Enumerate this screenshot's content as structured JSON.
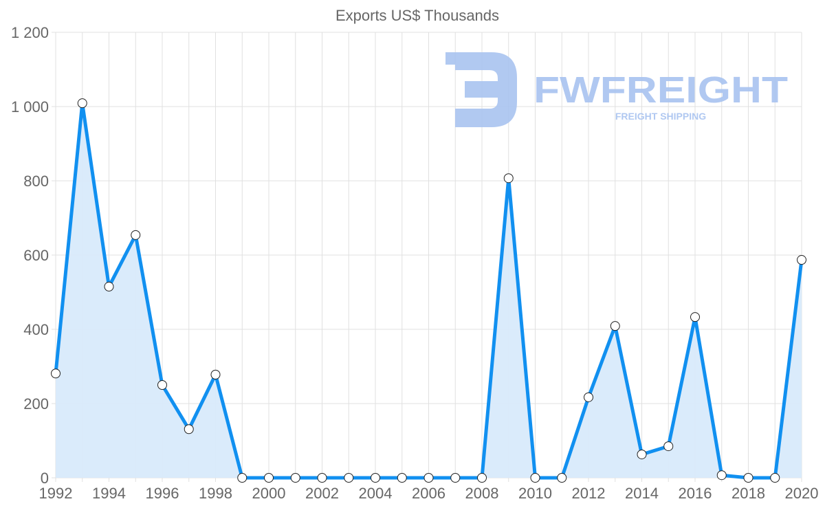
{
  "chart_data": {
    "type": "area",
    "title": "Exports US$ Thousands",
    "xlabel": "",
    "ylabel": "",
    "x": [
      1992,
      1993,
      1994,
      1995,
      1996,
      1997,
      1998,
      1999,
      2000,
      2001,
      2002,
      2003,
      2004,
      2005,
      2006,
      2007,
      2008,
      2009,
      2010,
      2011,
      2012,
      2013,
      2014,
      2015,
      2016,
      2017,
      2018,
      2019,
      2020
    ],
    "series": [
      {
        "name": "Exports",
        "values": [
          281,
          1009,
          515,
          654,
          250,
          131,
          278,
          0,
          0,
          0,
          0,
          0,
          0,
          0,
          0,
          0,
          0,
          807,
          0,
          0,
          217,
          409,
          63,
          85,
          433,
          7,
          0,
          0,
          587
        ]
      }
    ],
    "ylim": [
      0,
      1200
    ],
    "xlim": [
      1992,
      2020
    ],
    "y_ticks": [
      "0",
      "200",
      "400",
      "600",
      "800",
      "1 000",
      "1 200"
    ],
    "x_ticks": [
      "1992",
      "1994",
      "1996",
      "1998",
      "2000",
      "2002",
      "2004",
      "2006",
      "2008",
      "2010",
      "2012",
      "2014",
      "2016",
      "2018",
      "2020"
    ],
    "grid": true,
    "legend": "none",
    "colors": {
      "line": "#1190f0",
      "fill": "#d8eafb",
      "grid": "#e0e0e0",
      "text": "#666666"
    }
  },
  "watermark": {
    "brand": "FWFREIGHT",
    "tagline": "FREIGHT SHIPPING",
    "color": "#a8c3f0"
  }
}
